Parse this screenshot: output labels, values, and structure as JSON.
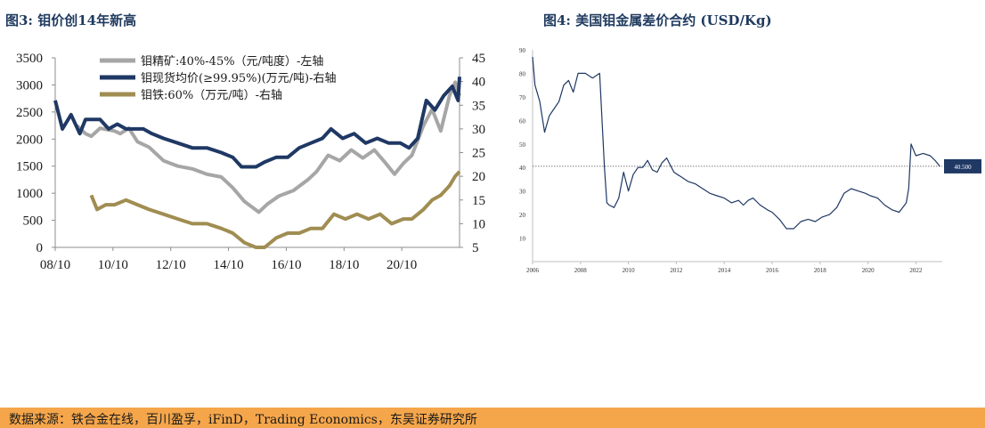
{
  "titles": {
    "left": "图3:  钼价创14年新高",
    "right": "图4:  美国钼金属差价合约 (USD/Kg)"
  },
  "source": "数据来源：铁合金在线，百川盈孚，iFinD，Trading Economics，东吴证券研究所",
  "chart_data": [
    {
      "type": "line",
      "title": "钼价创14年新高",
      "x_ticks": [
        "08/10",
        "10/10",
        "12/10",
        "14/10",
        "16/10",
        "18/10",
        "20/10"
      ],
      "x_range": [
        2008.75,
        2022.75
      ],
      "left_axis": {
        "ylim": [
          0,
          3500
        ],
        "ticks": [
          0,
          500,
          1000,
          1500,
          2000,
          2500,
          3000,
          3500
        ]
      },
      "right_axis": {
        "ylim": [
          5,
          45
        ],
        "ticks": [
          5,
          10,
          15,
          20,
          25,
          30,
          35,
          40,
          45
        ]
      },
      "legend_position": "top-center",
      "grid": false,
      "series": [
        {
          "name": "钼精矿:40%-45%（元/吨度）-左轴",
          "axis": "left",
          "color": "#a6a6a6",
          "x": [
            2009.5,
            2009.8,
            2010.0,
            2010.3,
            2010.8,
            2011.0,
            2011.3,
            2011.6,
            2012.0,
            2012.5,
            2013.0,
            2013.5,
            2014.0,
            2014.5,
            2014.9,
            2015.3,
            2015.8,
            2016.1,
            2016.5,
            2017.0,
            2017.5,
            2017.8,
            2018.2,
            2018.6,
            2019.0,
            2019.4,
            2019.8,
            2020.2,
            2020.5,
            2020.8,
            2021.1,
            2021.5,
            2021.8,
            2022.1,
            2022.4,
            2022.6,
            2022.75
          ],
          "values": [
            2250,
            2100,
            2050,
            2200,
            2150,
            2100,
            2200,
            1950,
            1850,
            1600,
            1500,
            1450,
            1350,
            1300,
            1100,
            850,
            650,
            800,
            950,
            1050,
            1250,
            1400,
            1700,
            1600,
            1800,
            1650,
            1800,
            1550,
            1350,
            1550,
            1700,
            2250,
            2550,
            2150,
            2800,
            3050,
            2800
          ]
        },
        {
          "name": "钼现货均价(≥99.95%)(万元/吨)-右轴",
          "axis": "right",
          "color": "#1f3864",
          "x": [
            2008.75,
            2009.0,
            2009.3,
            2009.6,
            2009.8,
            2010.0,
            2010.3,
            2010.6,
            2010.9,
            2011.2,
            2011.5,
            2011.8,
            2012.1,
            2012.5,
            2013.0,
            2013.5,
            2014.0,
            2014.5,
            2014.9,
            2015.2,
            2015.7,
            2016.0,
            2016.4,
            2016.8,
            2017.2,
            2017.6,
            2018.0,
            2018.3,
            2018.7,
            2019.1,
            2019.5,
            2019.9,
            2020.3,
            2020.7,
            2021.0,
            2021.3,
            2021.6,
            2021.9,
            2022.2,
            2022.5,
            2022.7,
            2022.75
          ],
          "values": [
            36,
            30,
            33,
            29,
            32,
            32,
            32,
            30,
            31,
            30,
            30,
            30,
            29,
            28,
            27,
            26,
            26,
            25,
            24,
            22,
            22,
            23,
            24,
            24,
            26,
            27,
            28,
            30,
            28,
            29,
            27,
            28,
            27,
            27,
            26,
            28,
            36,
            34,
            37,
            39,
            36,
            41
          ]
        },
        {
          "name": "钼铁:60%（万元/吨）-右轴",
          "axis": "right",
          "color": "#a08d52",
          "x": [
            2010.0,
            2010.2,
            2010.5,
            2010.8,
            2011.2,
            2011.6,
            2012.0,
            2012.5,
            2013.0,
            2013.5,
            2014.0,
            2014.5,
            2014.9,
            2015.3,
            2015.7,
            2016.0,
            2016.4,
            2016.8,
            2017.2,
            2017.6,
            2018.0,
            2018.4,
            2018.8,
            2019.2,
            2019.6,
            2020.0,
            2020.4,
            2020.8,
            2021.1,
            2021.5,
            2021.8,
            2022.1,
            2022.4,
            2022.6,
            2022.75
          ],
          "values": [
            16,
            13,
            14,
            14,
            15,
            14,
            13,
            12,
            11,
            10,
            10,
            9,
            8,
            6,
            5,
            5,
            7,
            8,
            8,
            9,
            9,
            12,
            11,
            12,
            11,
            12,
            10,
            11,
            11,
            13,
            15,
            16,
            18,
            20,
            21
          ]
        }
      ]
    },
    {
      "type": "line",
      "title": "美国钼金属差价合约 (USD/Kg)",
      "x_ticks": [
        "2006",
        "2008",
        "2010",
        "2012",
        "2014",
        "2016",
        "2018",
        "2020",
        "2022"
      ],
      "x_range": [
        2006,
        2023.1
      ],
      "ylim": [
        0,
        90
      ],
      "y_ticks": [
        10,
        20,
        30,
        40,
        50,
        60,
        70,
        80,
        90
      ],
      "grid": false,
      "reference_line": {
        "value": 40.5,
        "label": "40.500"
      },
      "series": [
        {
          "name": "",
          "color": "#1f3864",
          "x": [
            2006.0,
            2006.1,
            2006.3,
            2006.5,
            2006.7,
            2006.9,
            2007.1,
            2007.3,
            2007.5,
            2007.7,
            2007.9,
            2008.2,
            2008.5,
            2008.8,
            2009.0,
            2009.1,
            2009.2,
            2009.4,
            2009.6,
            2009.8,
            2010.0,
            2010.2,
            2010.4,
            2010.6,
            2010.8,
            2011.0,
            2011.2,
            2011.4,
            2011.6,
            2011.9,
            2012.2,
            2012.5,
            2012.8,
            2013.1,
            2013.4,
            2013.7,
            2014.0,
            2014.3,
            2014.6,
            2014.8,
            2015.0,
            2015.2,
            2015.5,
            2015.8,
            2016.0,
            2016.3,
            2016.6,
            2016.9,
            2017.2,
            2017.5,
            2017.8,
            2018.1,
            2018.4,
            2018.7,
            2019.0,
            2019.3,
            2019.6,
            2019.9,
            2020.1,
            2020.4,
            2020.7,
            2021.0,
            2021.3,
            2021.6,
            2021.7,
            2021.8,
            2022.0,
            2022.3,
            2022.6,
            2022.8,
            2023.0
          ],
          "values": [
            87,
            75,
            68,
            55,
            62,
            65,
            68,
            75,
            77,
            72,
            80,
            80,
            78,
            80,
            40,
            25,
            24,
            23,
            27,
            38,
            30,
            37,
            40,
            40,
            43,
            39,
            38,
            42,
            44,
            38,
            36,
            34,
            33,
            31,
            29,
            28,
            27,
            25,
            26,
            24,
            26,
            27,
            24,
            22,
            21,
            18,
            14,
            14,
            17,
            18,
            17,
            19,
            20,
            23,
            29,
            31,
            30,
            29,
            28,
            27,
            24,
            22,
            21,
            25,
            31,
            50,
            45,
            46,
            45,
            43,
            40.5
          ]
        }
      ]
    }
  ]
}
